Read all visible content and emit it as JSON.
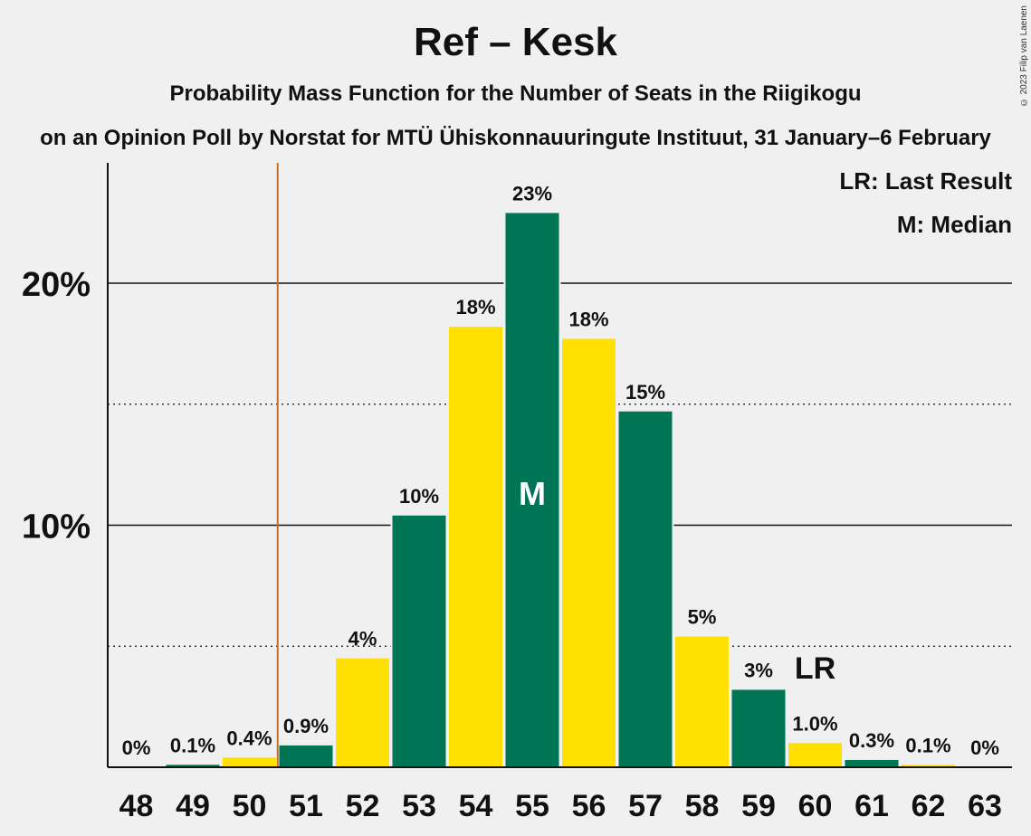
{
  "title": "Ref – Kesk",
  "subtitle": "Probability Mass Function for the Number of Seats in the Riigikogu",
  "subsubtitle": "on an Opinion Poll by Norstat for MTÜ Ühiskonnauuringute Instituut, 31 January–6 February",
  "copyright": "© 2023 Filip van Laenen",
  "legend": {
    "last_result": "LR: Last Result",
    "median": "M: Median"
  },
  "colors": {
    "green": "#007555",
    "yellow": "#ffe000",
    "threshold_line": "#c0712b",
    "background": "#f0f0f0"
  },
  "chart_data": {
    "type": "bar",
    "categories": [
      "48",
      "49",
      "50",
      "51",
      "52",
      "53",
      "54",
      "55",
      "56",
      "57",
      "58",
      "59",
      "60",
      "61",
      "62",
      "63"
    ],
    "values": [
      0,
      0.1,
      0.4,
      0.9,
      4.5,
      10.4,
      18.2,
      22.9,
      17.7,
      14.7,
      5.4,
      3.2,
      1.0,
      0.3,
      0.1,
      0
    ],
    "labels": [
      "0%",
      "0.1%",
      "0.4%",
      "0.9%",
      "4%",
      "10%",
      "18%",
      "23%",
      "18%",
      "15%",
      "5%",
      "3%",
      "1.0%",
      "0.3%",
      "0.1%",
      "0%"
    ],
    "bar_colors": [
      "yellow",
      "green",
      "yellow",
      "green",
      "yellow",
      "green",
      "yellow",
      "green",
      "yellow",
      "green",
      "yellow",
      "green",
      "yellow",
      "green",
      "yellow",
      "green"
    ],
    "y_ticks": [
      {
        "value": 10,
        "label": "10%"
      },
      {
        "value": 20,
        "label": "20%"
      }
    ],
    "y_minor_ticks": [
      5,
      15
    ],
    "ylim": [
      0,
      25
    ],
    "median_category": "55",
    "median_marker": "M",
    "last_result_category": "60",
    "last_result_marker": "LR",
    "threshold_after_category": "50"
  }
}
